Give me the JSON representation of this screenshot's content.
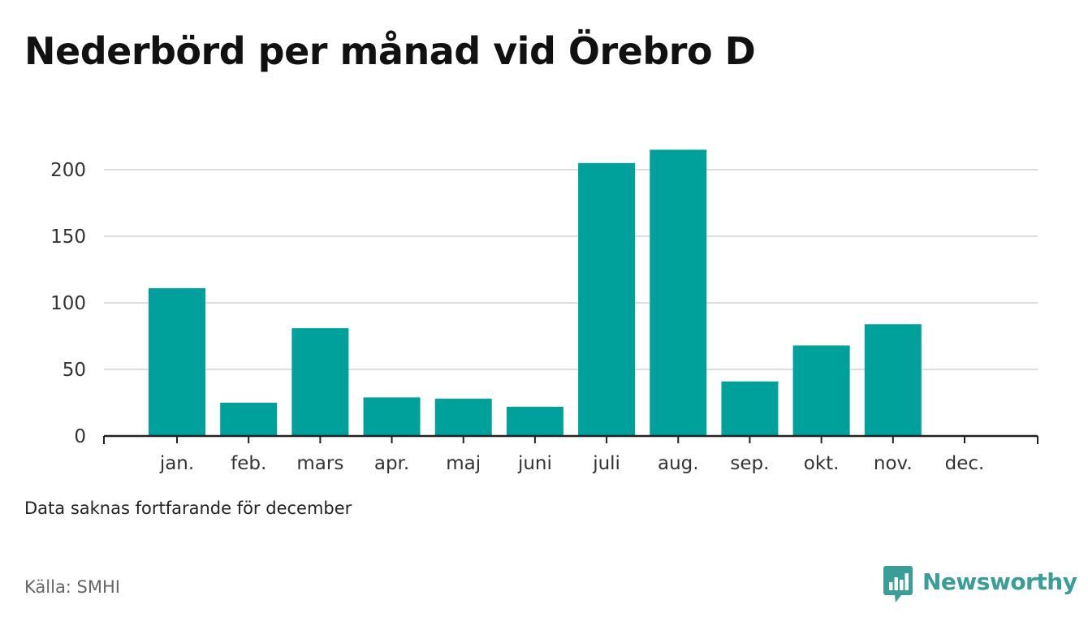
{
  "title": "Nederbörd per månad vid Örebro D",
  "note": "Data saknas fortfarande för december",
  "source": "Källa: SMHI",
  "brand": {
    "name": "Newsworthy",
    "icon": "newsworthy-logo-icon",
    "color": "#3a9d96"
  },
  "chart_data": {
    "type": "bar",
    "title": "Nederbörd per månad vid Örebro D",
    "categories": [
      "jan.",
      "feb.",
      "mars",
      "apr.",
      "maj",
      "juni",
      "juli",
      "aug.",
      "sep.",
      "okt.",
      "nov.",
      "dec."
    ],
    "values": [
      111,
      25,
      81,
      29,
      28,
      22,
      205,
      215,
      41,
      68,
      84,
      null
    ],
    "xlabel": "",
    "ylabel": "",
    "ylim": [
      0,
      225
    ],
    "yticks": [
      0,
      50,
      100,
      150,
      200
    ],
    "grid": true,
    "legend": "none",
    "bar_color": "#00a19a",
    "grid_color": "#dddddd",
    "axis_color": "#222222"
  }
}
